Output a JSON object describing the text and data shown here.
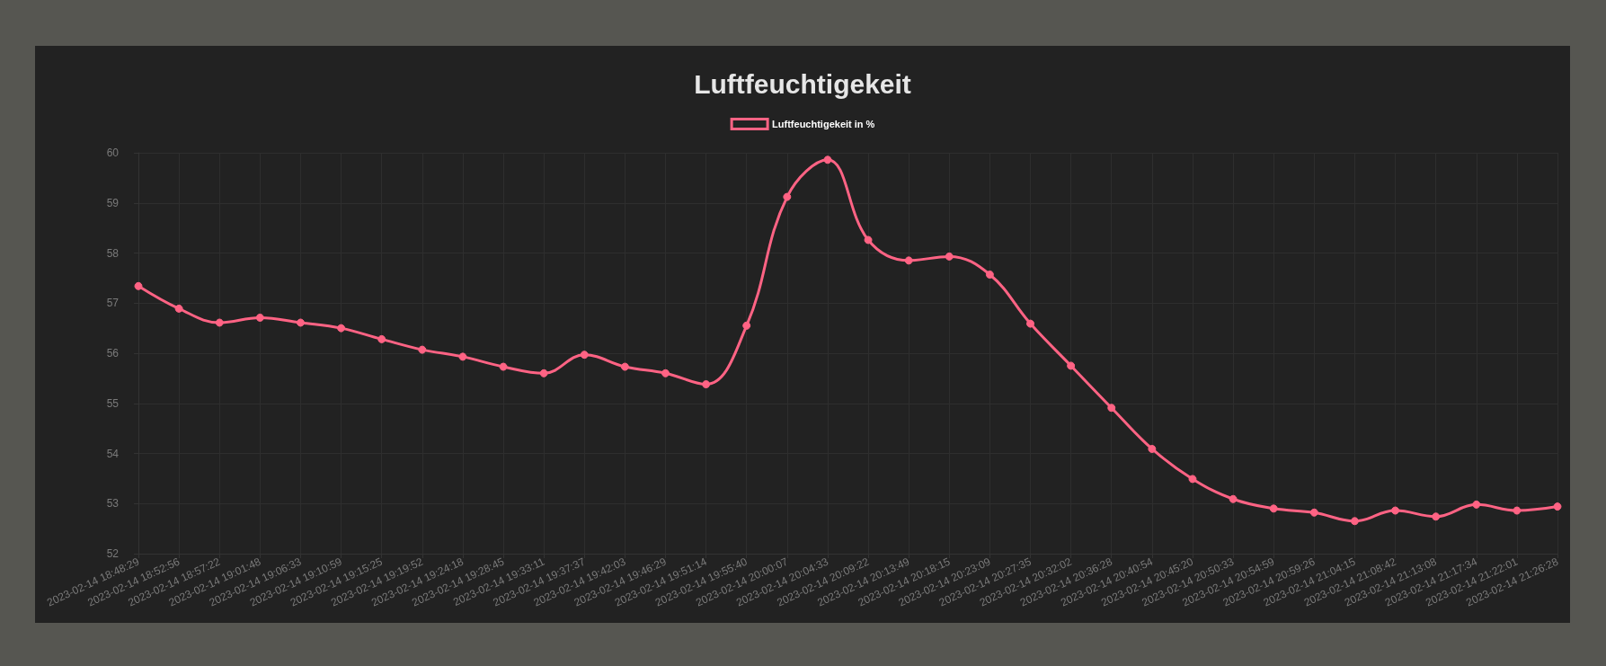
{
  "chart_data": {
    "type": "line",
    "title": "Luftfeuchtigekeit",
    "categories": [
      "2023-02-14 18:48:29",
      "2023-02-14 18:52:56",
      "2023-02-14 18:57:22",
      "2023-02-14 19:01:48",
      "2023-02-14 19:06:33",
      "2023-02-14 19:10:59",
      "2023-02-14 19:15:25",
      "2023-02-14 19:19:52",
      "2023-02-14 19:24:18",
      "2023-02-14 19:28:45",
      "2023-02-14 19:33:11",
      "2023-02-14 19:37:37",
      "2023-02-14 19:42:03",
      "2023-02-14 19:46:29",
      "2023-02-14 19:51:14",
      "2023-02-14 19:55:40",
      "2023-02-14 20:00:07",
      "2023-02-14 20:04:33",
      "2023-02-14 20:09:22",
      "2023-02-14 20:13:49",
      "2023-02-14 20:18:15",
      "2023-02-14 20:23:09",
      "2023-02-14 20:27:35",
      "2023-02-14 20:32:02",
      "2023-02-14 20:36:28",
      "2023-02-14 20:40:54",
      "2023-02-14 20:45:20",
      "2023-02-14 20:50:33",
      "2023-02-14 20:54:59",
      "2023-02-14 20:59:26",
      "2023-02-14 21:04:15",
      "2023-02-14 21:08:42",
      "2023-02-14 21:13:08",
      "2023-02-14 21:17:34",
      "2023-02-14 21:22:01",
      "2023-02-14 21:26:28"
    ],
    "series": [
      {
        "name": "Luftfeuchtigekeit in %",
        "color": "#ff6384",
        "values": [
          57.34,
          56.89,
          56.61,
          56.71,
          56.61,
          56.5,
          56.28,
          56.07,
          55.93,
          55.73,
          55.6,
          55.97,
          55.73,
          55.6,
          55.38,
          56.55,
          59.12,
          59.86,
          58.26,
          57.85,
          57.93,
          57.57,
          56.59,
          55.75,
          54.91,
          54.09,
          53.49,
          53.09,
          52.9,
          52.82,
          52.65,
          52.86,
          52.74,
          52.98,
          52.86,
          52.94
        ]
      }
    ],
    "ylim": [
      52,
      60
    ],
    "yticks": [
      52,
      53,
      54,
      55,
      56,
      57,
      58,
      59,
      60
    ],
    "grid": true,
    "legend": "top",
    "marker": "circle",
    "line_style": "solid"
  }
}
